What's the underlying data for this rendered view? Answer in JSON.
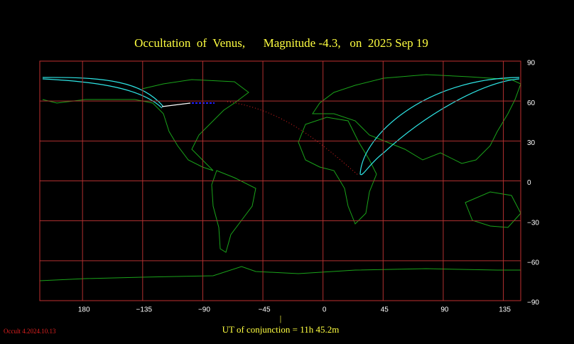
{
  "chart_data": {
    "type": "map",
    "title": "Occultation  of  Venus,      Magnitude -4.3,   on  2025 Sep 19",
    "xlim": [
      148,
      508
    ],
    "xticks": [
      180,
      {
        "value": 225,
        "label": "−135"
      },
      {
        "value": 270,
        "label": "−90"
      },
      {
        "value": 315,
        "label": "−45"
      },
      {
        "value": 360,
        "label": "0"
      },
      {
        "value": 405,
        "label": "45"
      },
      {
        "value": 450,
        "label": "90"
      },
      {
        "value": 495,
        "label": "135"
      }
    ],
    "ylim": [
      -90,
      90
    ],
    "yticks": [
      90,
      60,
      30,
      0,
      {
        "value": -30,
        "label": "−30"
      },
      {
        "value": -60,
        "label": "−60"
      },
      {
        "value": -90,
        "label": "−90"
      }
    ],
    "grid": true,
    "footer": "UT of conjunction = 11h 45.2m",
    "version": "Occult 4.2024.10.13"
  }
}
